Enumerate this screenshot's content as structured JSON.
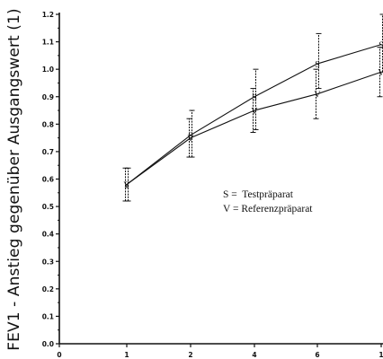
{
  "chart_data": {
    "type": "line",
    "ylabel": "FEV1 - Anstieg gegenüber Ausgangswert (1)",
    "xlabel": "",
    "x_ticks": [
      "0",
      "1",
      "2",
      "4",
      "6",
      "1"
    ],
    "y_ticks": [
      "0.0",
      "0.1",
      "0.2",
      "0.3",
      "0.4",
      "0.5",
      "0.6",
      "0.7",
      "0.8",
      "0.9",
      "1.0",
      "1.1",
      "1.2"
    ],
    "ylim": [
      0,
      1.2
    ],
    "grid": false,
    "legend_position": "center-right",
    "legend": [
      {
        "symbol": "S",
        "text": "S =  Testpräparat"
      },
      {
        "symbol": "V",
        "text": "V = Referenzpräparat"
      }
    ],
    "series": [
      {
        "marker": "S",
        "x": [
          "1",
          "2",
          "4",
          "6",
          "1"
        ],
        "values": [
          0.58,
          0.76,
          0.9,
          1.02,
          1.09
        ],
        "error_low": [
          0.52,
          0.68,
          0.78,
          0.93,
          0.99
        ],
        "error_high": [
          0.64,
          0.85,
          1.0,
          1.13,
          1.2
        ]
      },
      {
        "marker": "V",
        "x": [
          "1",
          "2",
          "4",
          "6",
          "1"
        ],
        "values": [
          0.58,
          0.75,
          0.85,
          0.91,
          0.99
        ],
        "error_low": [
          0.52,
          0.68,
          0.77,
          0.82,
          0.9
        ],
        "error_high": [
          0.64,
          0.82,
          0.93,
          1.0,
          1.08
        ]
      }
    ]
  }
}
